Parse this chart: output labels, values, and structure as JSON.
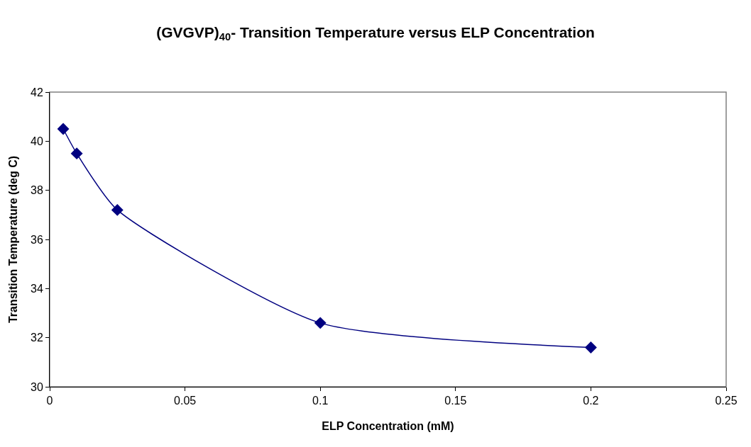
{
  "chart_data": {
    "type": "line",
    "title": "(GVGVP)$_{40}$- Transition Temperature versus ELP Concentration",
    "xlabel": "ELP Concentration (mM)",
    "ylabel": "Transition Temperature (deg C)",
    "x": [
      0.005,
      0.01,
      0.025,
      0.1,
      0.2
    ],
    "series": [
      {
        "color": "#000080",
        "values": [
          40.5,
          39.5,
          37.2,
          32.6,
          31.6
        ]
      }
    ],
    "xlim": [
      0,
      0.25
    ],
    "xticks": [
      0,
      0.05,
      0.1,
      0.15,
      0.2,
      0.25
    ],
    "ylim": [
      30,
      42
    ],
    "yticks": [
      30,
      32,
      34,
      36,
      38,
      40,
      42
    ],
    "marker": "diamond",
    "line_style": "solid",
    "grid": false
  }
}
